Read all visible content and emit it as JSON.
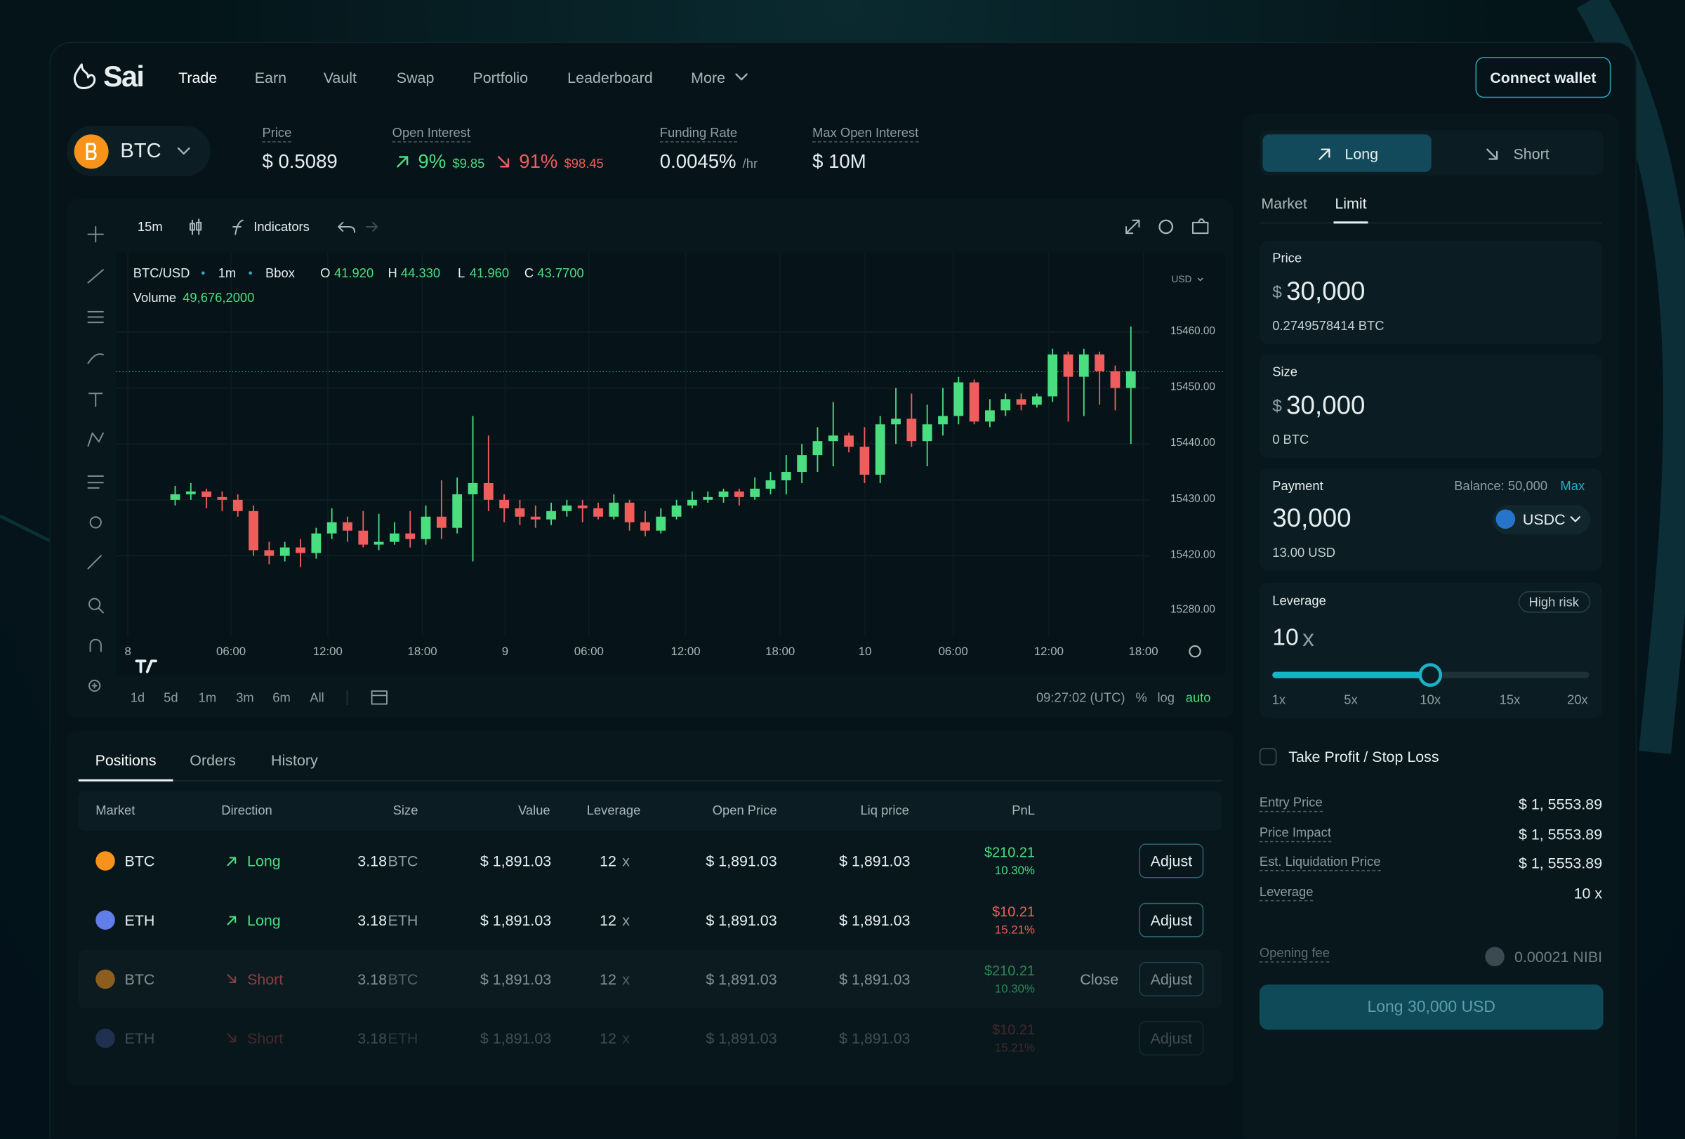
{
  "nav": {
    "brand": "Sai",
    "links": [
      "Trade",
      "Earn",
      "Vault",
      "Swap",
      "Portfolio",
      "Leaderboard",
      "More"
    ],
    "connect": "Connect wallet"
  },
  "ticker": {
    "symbol": "BTC",
    "price": {
      "label": "Price",
      "value": "$ 0.5089"
    },
    "open_interest": {
      "label": "Open Interest",
      "long_pct": "9%",
      "long_usd": "$9.85",
      "short_pct": "91%",
      "short_usd": "$98.45"
    },
    "funding_rate": {
      "label": "Funding Rate",
      "value": "0.0045%",
      "unit": "/hr"
    },
    "max_open_interest": {
      "label": "Max Open Interest",
      "value": "$ 10M"
    }
  },
  "chart": {
    "timeframe": "15m",
    "indicators": "Indicators",
    "pair": "BTC/USD",
    "interval": "1m",
    "source": "Bbox",
    "ohlc_keys": [
      "O",
      "H",
      "L",
      "C"
    ],
    "ohlc_values": [
      "41.920",
      "44.330",
      "41.960",
      "43.7700"
    ],
    "volume_label": "Volume",
    "volume": "49,676,2000",
    "currency": "USD",
    "ylim": [
      15406,
      15474.2
    ],
    "yticks": [
      {
        "value": 15460,
        "label": "15460.00"
      },
      {
        "value": 15450,
        "label": "15450.00"
      },
      {
        "value": 15440,
        "label": "15440.00"
      },
      {
        "value": 15430,
        "label": "15430.00"
      },
      {
        "value": 15420,
        "label": "15420.00"
      }
    ],
    "price_axis_bottom_label": "15280.00",
    "last_price": 15452.9,
    "xlabels": [
      "8",
      "06:00",
      "12:00",
      "18:00",
      "9",
      "06:00",
      "12:00",
      "18:00",
      "10",
      "06:00",
      "12:00",
      "18:00"
    ],
    "candles": {
      "open": [
        15430,
        15431,
        15431.5,
        15430.5,
        15430,
        15428,
        15421,
        15420,
        15421.5,
        15420.5,
        15424,
        15426,
        15424.5,
        15422,
        15422.5,
        15424,
        15423,
        15427,
        15425,
        15431,
        15433,
        15430,
        15428.5,
        15427,
        15426.5,
        15428,
        15429,
        15428.5,
        15427,
        15429.5,
        15426,
        15424.5,
        15427,
        15429,
        15430,
        15430.5,
        15431.5,
        15430.5,
        15432,
        15433.5,
        15435,
        15438,
        15440.5,
        15441.5,
        15439.5,
        15434.5,
        15443.5,
        15444.5,
        15440.5,
        15443.5,
        15445,
        15451,
        15444,
        15446,
        15448,
        15447,
        15448.5,
        15456,
        15452,
        15456,
        15453,
        15450
      ],
      "high": [
        15432.5,
        15433,
        15432,
        15431.5,
        15431,
        15429,
        15422.5,
        15422.5,
        15423,
        15425,
        15428.5,
        15427,
        15428,
        15427.5,
        15426,
        15428,
        15429,
        15433.5,
        15434,
        15445,
        15441.5,
        15431,
        15430,
        15429,
        15429.5,
        15430,
        15430,
        15429.5,
        15431,
        15430,
        15428,
        15428.5,
        15430,
        15431.5,
        15431.5,
        15432,
        15432,
        15434,
        15435,
        15438,
        15440,
        15443,
        15447.5,
        15442,
        15443,
        15445,
        15450,
        15449,
        15447,
        15450,
        15452,
        15451.5,
        15448,
        15449,
        15449,
        15449,
        15457,
        15456.5,
        15457,
        15456.5,
        15454,
        15461
      ],
      "low": [
        15429,
        15430,
        15428.5,
        15428,
        15427,
        15420,
        15418.5,
        15419,
        15418,
        15419.5,
        15423,
        15422.5,
        15421.5,
        15421,
        15422,
        15421.5,
        15422,
        15423,
        15424,
        15419,
        15428,
        15426,
        15425.5,
        15425,
        15425.5,
        15427,
        15426,
        15426.5,
        15426.5,
        15424.5,
        15423.5,
        15424,
        15426.5,
        15428.5,
        15429.5,
        15429.5,
        15429,
        15430,
        15431,
        15431,
        15433,
        15435,
        15436,
        15438.5,
        15433,
        15433,
        15440,
        15439.5,
        15436,
        15441.5,
        15443.5,
        15443.5,
        15443,
        15445,
        15446,
        15446.5,
        15447.5,
        15444,
        15445,
        15447,
        15446,
        15440
      ],
      "close": [
        15431,
        15431.5,
        15430.5,
        15430,
        15428,
        15421,
        15420,
        15421.5,
        15420.5,
        15424,
        15426,
        15424.5,
        15422,
        15422.5,
        15424,
        15423,
        15427,
        15425,
        15431,
        15433,
        15430,
        15428.5,
        15427,
        15426.5,
        15428,
        15429,
        15428.5,
        15427,
        15429.5,
        15426,
        15424.5,
        15427,
        15429,
        15430,
        15430.5,
        15431.5,
        15430.5,
        15432,
        15433.5,
        15435,
        15438,
        15440.5,
        15441.5,
        15439.5,
        15434.5,
        15443.5,
        15444.5,
        15440.5,
        15443.5,
        15445,
        15451,
        15444,
        15446,
        15448,
        15447,
        15448.5,
        15456,
        15452,
        15456,
        15453,
        15450,
        15453
      ]
    },
    "up_color": "#4ade80",
    "down_color": "#f05d5d",
    "ranges": [
      "1d",
      "5d",
      "1m",
      "3m",
      "6m",
      "All"
    ],
    "clock": "09:27:02 (UTC)",
    "scale_options": [
      "%",
      "log",
      "auto"
    ]
  },
  "positions": {
    "tabs": [
      "Positions",
      "Orders",
      "History"
    ],
    "columns": [
      "Market",
      "Direction",
      "Size",
      "Value",
      "Leverage",
      "Open Price",
      "Liq price",
      "PnL"
    ],
    "rows": [
      {
        "market": "BTC",
        "coin_color": "#f7931a",
        "direction": "Long",
        "direction_color": "#4ade80",
        "size": "3.18",
        "size_unit": "BTC",
        "value": "$ 1,891.03",
        "leverage": "12",
        "leverage_unit": "x",
        "open_price": "$ 1,891.03",
        "liq_price": "$ 1,891.03",
        "pnl": "$210.21",
        "pnl_pct": "10.30%",
        "pnl_color": "#4ade80",
        "action": "Adjust"
      },
      {
        "market": "ETH",
        "coin_color": "#627eea",
        "direction": "Long",
        "direction_color": "#4ade80",
        "size": "3.18",
        "size_unit": "ETH",
        "value": "$ 1,891.03",
        "leverage": "12",
        "leverage_unit": "x",
        "open_price": "$ 1,891.03",
        "liq_price": "$ 1,891.03",
        "pnl": "$10.21",
        "pnl_pct": "15.21%",
        "pnl_color": "#f05d5d",
        "action": "Adjust"
      },
      {
        "market": "BTC",
        "coin_color": "#f7931a",
        "direction": "Short",
        "direction_color": "#f05d5d",
        "size": "3.18",
        "size_unit": "BTC",
        "value": "$ 1,891.03",
        "leverage": "12",
        "leverage_unit": "x",
        "open_price": "$ 1,891.03",
        "liq_price": "$ 1,891.03",
        "pnl": "$210.21",
        "pnl_pct": "10.30%",
        "pnl_color": "#4ade80",
        "close": "Close",
        "action": "Adjust"
      },
      {
        "market": "ETH",
        "coin_color": "#627eea",
        "direction": "Short",
        "direction_color": "#f05d5d",
        "size": "3.18",
        "size_unit": "ETH",
        "value": "$ 1,891.03",
        "leverage": "12",
        "leverage_unit": "x",
        "open_price": "$ 1,891.03",
        "liq_price": "$ 1,891.03",
        "pnl": "$10.21",
        "pnl_pct": "15.21%",
        "pnl_color": "#f05d5d",
        "action": "Adjust"
      }
    ]
  },
  "order": {
    "sides": [
      "Long",
      "Short"
    ],
    "types": [
      "Market",
      "Limit"
    ],
    "price": {
      "label": "Price",
      "currency": "$",
      "value": "30,000",
      "sub": "0.2749578414 BTC"
    },
    "size": {
      "label": "Size",
      "currency": "$",
      "value": "30,000",
      "sub": "0 BTC"
    },
    "payment": {
      "label": "Payment",
      "balance": "Balance: 50,000",
      "max": "Max",
      "value": "30,000",
      "token": "USDC",
      "sub": "13.00 USD"
    },
    "leverage": {
      "label": "Leverage",
      "risk": "High risk",
      "value": "10",
      "unit": "x",
      "ticks": [
        "1x",
        "5x",
        "10x",
        "15x",
        "20x"
      ]
    },
    "tpsl": "Take Profit / Stop Loss",
    "summary": [
      {
        "label": "Entry Price",
        "value": "$ 1, 5553.89"
      },
      {
        "label": "Price Impact",
        "value": "$ 1, 5553.89"
      },
      {
        "label": "Est. Liquidation Price",
        "value": "$ 1, 5553.89"
      },
      {
        "label": "Leverage",
        "value": "10 x"
      }
    ],
    "fee": {
      "label": "Opening fee",
      "value": "0.00021 NIBI"
    },
    "submit": "Long 30,000 USD"
  }
}
